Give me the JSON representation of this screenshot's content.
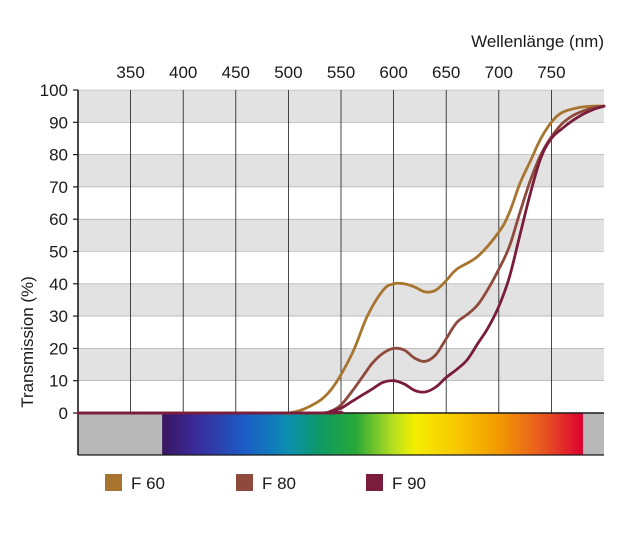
{
  "chart_data": {
    "type": "line",
    "xlabel": "Wellenlänge (nm)",
    "ylabel": "Transmission (%)",
    "xlim": [
      300,
      800
    ],
    "ylim": [
      0,
      100
    ],
    "x_ticks": [
      350,
      400,
      450,
      500,
      550,
      600,
      650,
      700,
      750
    ],
    "y_ticks": [
      0,
      10,
      20,
      30,
      40,
      50,
      60,
      70,
      80,
      90,
      100
    ],
    "grid": true,
    "banded_background": true,
    "spectrum_bar": {
      "start_nm": 380,
      "end_nm": 780
    },
    "legend_position": "bottom",
    "series": [
      {
        "name": "F 60",
        "color": "#a87530",
        "x": [
          300,
          480,
          500,
          520,
          540,
          560,
          575,
          590,
          600,
          610,
          620,
          630,
          640,
          650,
          660,
          680,
          700,
          710,
          720,
          730,
          740,
          750,
          760,
          775,
          790,
          800
        ],
        "y": [
          0,
          0,
          0,
          2,
          7,
          18,
          30,
          38,
          40,
          40,
          39,
          37.5,
          38,
          41,
          44.5,
          48.5,
          56,
          62,
          71,
          78,
          85,
          90,
          93,
          94.5,
          95,
          95
        ]
      },
      {
        "name": "F 80",
        "color": "#8e4a3c",
        "x": [
          300,
          520,
          530,
          540,
          550,
          560,
          570,
          580,
          590,
          600,
          610,
          620,
          630,
          640,
          650,
          660,
          670,
          680,
          690,
          700,
          710,
          720,
          730,
          740,
          750,
          760,
          770,
          780,
          790,
          800
        ],
        "y": [
          0,
          0,
          0,
          0.5,
          2.5,
          6.5,
          11,
          15.5,
          18.5,
          20,
          19.5,
          17,
          16,
          18,
          23,
          28,
          30.5,
          33.5,
          38.5,
          44.5,
          51.5,
          62,
          72,
          80,
          85.5,
          89.5,
          92,
          93.5,
          94.5,
          95
        ]
      },
      {
        "name": "F 90",
        "color": "#7a1d3c",
        "x": [
          300,
          530,
          540,
          550,
          560,
          570,
          580,
          590,
          600,
          610,
          620,
          630,
          640,
          650,
          660,
          670,
          680,
          690,
          700,
          710,
          720,
          730,
          740,
          750,
          760,
          770,
          780,
          790,
          800
        ],
        "y": [
          0,
          0,
          0.5,
          1.5,
          3.5,
          5.5,
          7.5,
          9.5,
          10,
          9,
          7,
          6.5,
          8,
          11,
          13.5,
          16.5,
          21.5,
          26.5,
          33,
          42,
          55,
          68,
          79,
          85,
          88,
          90.5,
          92.5,
          94,
          95
        ]
      }
    ]
  }
}
